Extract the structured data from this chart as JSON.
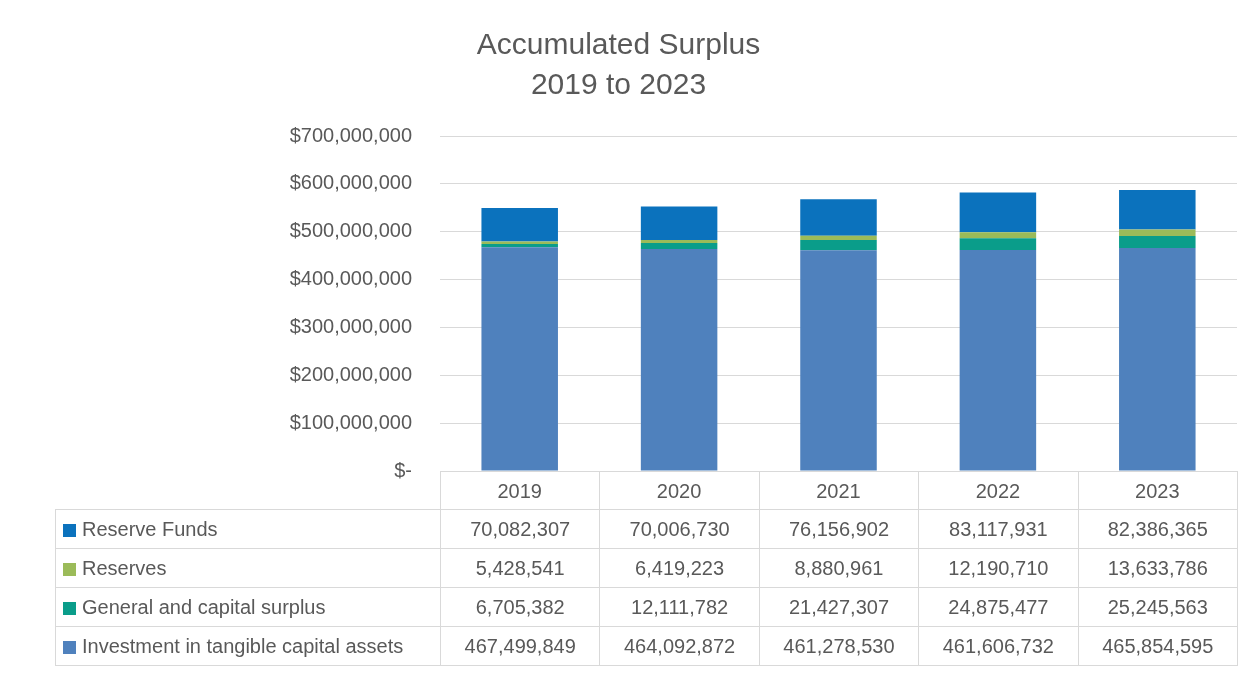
{
  "chart_data": {
    "type": "bar",
    "title": "Accumulated Surplus",
    "subtitle": "2019 to 2023",
    "categories": [
      "2019",
      "2020",
      "2021",
      "2022",
      "2023"
    ],
    "stacked": true,
    "series": [
      {
        "name": "Investment in tangible capital assets",
        "color": "#4f81bd",
        "values": [
          467499849,
          464092872,
          461278530,
          461606732,
          465854595
        ],
        "value_labels": [
          "467,499,849",
          "464,092,872",
          "461,278,530",
          "461,606,732",
          "465,854,595"
        ]
      },
      {
        "name": "General and capital surplus",
        "color": "#0a9d8a",
        "values": [
          6705382,
          12111782,
          21427307,
          24875477,
          25245563
        ],
        "value_labels": [
          "6,705,382",
          "12,111,782",
          "21,427,307",
          "24,875,477",
          "25,245,563"
        ]
      },
      {
        "name": "Reserves",
        "color": "#9bbb59",
        "values": [
          5428541,
          6419223,
          8880961,
          12190710,
          13633786
        ],
        "value_labels": [
          "5,428,541",
          "6,419,223",
          "8,880,961",
          "12,190,710",
          "13,633,786"
        ]
      },
      {
        "name": "Reserve Funds",
        "color": "#0b72bd",
        "values": [
          70082307,
          70006730,
          76156902,
          83117931,
          82386365
        ],
        "value_labels": [
          "70,082,307",
          "70,006,730",
          "76,156,902",
          "83,117,931",
          "82,386,365"
        ]
      }
    ],
    "ylim": [
      0,
      700000000
    ],
    "yticks": [
      {
        "value": 0,
        "label": "$-"
      },
      {
        "value": 100000000,
        "label": "$100,000,000"
      },
      {
        "value": 200000000,
        "label": "$200,000,000"
      },
      {
        "value": 300000000,
        "label": "$300,000,000"
      },
      {
        "value": 400000000,
        "label": "$400,000,000"
      },
      {
        "value": 500000000,
        "label": "$500,000,000"
      },
      {
        "value": 600000000,
        "label": "$600,000,000"
      },
      {
        "value": 700000000,
        "label": "$700,000,000"
      }
    ],
    "grid": "y",
    "legend": "bottom"
  }
}
